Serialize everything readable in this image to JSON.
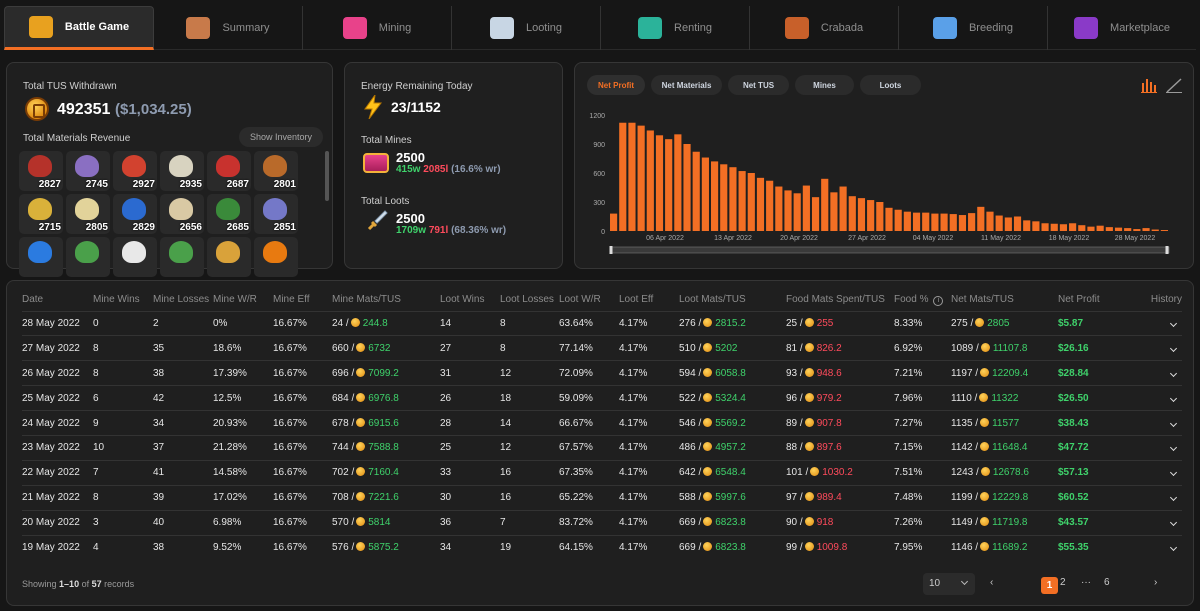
{
  "nav": {
    "tabs": [
      {
        "label": "Battle Game",
        "icon": "battle-logo-icon",
        "active": true
      },
      {
        "label": "Summary",
        "icon": "chest-icon"
      },
      {
        "label": "Mining",
        "icon": "treasure-chest-icon"
      },
      {
        "label": "Looting",
        "icon": "sword-icon"
      },
      {
        "label": "Renting",
        "icon": "rent-ticket-icon"
      },
      {
        "label": "Crabada",
        "icon": "crab-icon"
      },
      {
        "label": "Breeding",
        "icon": "egg-incubator-icon"
      },
      {
        "label": "Marketplace",
        "icon": "market-banner-icon"
      }
    ]
  },
  "withdrawn": {
    "title": "Total TUS Withdrawn",
    "amount": "492351",
    "usd": "($1,034.25)"
  },
  "materials": {
    "title": "Total Materials Revenue",
    "button": "Show Inventory",
    "items": [
      {
        "count": "2827",
        "color": "#b5322a"
      },
      {
        "count": "2745",
        "color": "#8a6fc2"
      },
      {
        "count": "2927",
        "color": "#d2422f"
      },
      {
        "count": "2935",
        "color": "#d8d3c0"
      },
      {
        "count": "2687",
        "color": "#c8322e"
      },
      {
        "count": "2801",
        "color": "#b96a2a"
      },
      {
        "count": "2715",
        "color": "#d9b13a"
      },
      {
        "count": "2805",
        "color": "#e2d39a"
      },
      {
        "count": "2829",
        "color": "#2b6ad0"
      },
      {
        "count": "2656",
        "color": "#d9c9a4"
      },
      {
        "count": "2685",
        "color": "#3a8a3a"
      },
      {
        "count": "2851",
        "color": "#7478c8"
      },
      {
        "count": "",
        "color": "#2b7be0"
      },
      {
        "count": "",
        "color": "#4aa04a"
      },
      {
        "count": "",
        "color": "#e8e8e8"
      },
      {
        "count": "",
        "color": "#4aa04a"
      },
      {
        "count": "",
        "color": "#d9a23a"
      },
      {
        "count": "",
        "color": "#e87a10"
      }
    ]
  },
  "energy": {
    "title": "Energy Remaining Today",
    "value": "23/1152"
  },
  "mines": {
    "title": "Total Mines",
    "total": "2500",
    "wins": "415w",
    "losses": "2085l",
    "rate": "(16.6% wr)"
  },
  "loots": {
    "title": "Total Loots",
    "total": "2500",
    "wins": "1709w",
    "losses": "791l",
    "rate": "(68.36% wr)"
  },
  "chart_tabs": [
    "Net Profit",
    "Net Materials",
    "Net TUS",
    "Mines",
    "Loots"
  ],
  "chart_data": {
    "type": "bar",
    "color": "#f36f24",
    "ylim": [
      0,
      1200
    ],
    "yticks": [
      "1200",
      "900",
      "600",
      "300",
      "0"
    ],
    "xticks": [
      "06 Apr 2022",
      "13 Apr 2022",
      "20 Apr 2022",
      "27 Apr 2022",
      "04 May 2022",
      "11 May 2022",
      "18 May 2022",
      "28 May 2022"
    ],
    "values": [
      180,
      1120,
      1120,
      1090,
      1040,
      990,
      950,
      1000,
      900,
      820,
      760,
      720,
      690,
      660,
      620,
      600,
      550,
      520,
      460,
      420,
      390,
      470,
      350,
      540,
      400,
      460,
      360,
      340,
      320,
      300,
      240,
      220,
      200,
      190,
      190,
      180,
      180,
      175,
      165,
      185,
      250,
      200,
      160,
      140,
      150,
      110,
      100,
      80,
      75,
      70,
      80,
      60,
      45,
      55,
      40,
      35,
      30,
      20,
      30,
      15,
      10
    ]
  },
  "table": {
    "headers": [
      "Date",
      "Mine Wins",
      "Mine Losses",
      "Mine W/R",
      "Mine Eff",
      "Mine Mats/TUS",
      "Loot Wins",
      "Loot Losses",
      "Loot W/R",
      "Loot Eff",
      "Loot Mats/TUS",
      "Food Mats Spent/TUS",
      "Food %",
      "Net Mats/TUS",
      "Net Profit",
      "History"
    ],
    "rows": [
      [
        "28 May 2022",
        "0",
        "2",
        "0%",
        "16.67%",
        "24 /",
        "244.8",
        "14",
        "8",
        "63.64%",
        "4.17%",
        "276 /",
        "2815.2",
        "25 /",
        "255",
        "8.33%",
        "275 /",
        "2805",
        "$5.87"
      ],
      [
        "27 May 2022",
        "8",
        "35",
        "18.6%",
        "16.67%",
        "660 /",
        "6732",
        "27",
        "8",
        "77.14%",
        "4.17%",
        "510 /",
        "5202",
        "81 /",
        "826.2",
        "6.92%",
        "1089 /",
        "11107.8",
        "$26.16"
      ],
      [
        "26 May 2022",
        "8",
        "38",
        "17.39%",
        "16.67%",
        "696 /",
        "7099.2",
        "31",
        "12",
        "72.09%",
        "4.17%",
        "594 /",
        "6058.8",
        "93 /",
        "948.6",
        "7.21%",
        "1197 /",
        "12209.4",
        "$28.84"
      ],
      [
        "25 May 2022",
        "6",
        "42",
        "12.5%",
        "16.67%",
        "684 /",
        "6976.8",
        "26",
        "18",
        "59.09%",
        "4.17%",
        "522 /",
        "5324.4",
        "96 /",
        "979.2",
        "7.96%",
        "1110 /",
        "11322",
        "$26.50"
      ],
      [
        "24 May 2022",
        "9",
        "34",
        "20.93%",
        "16.67%",
        "678 /",
        "6915.6",
        "28",
        "14",
        "66.67%",
        "4.17%",
        "546 /",
        "5569.2",
        "89 /",
        "907.8",
        "7.27%",
        "1135 /",
        "11577",
        "$38.43"
      ],
      [
        "23 May 2022",
        "10",
        "37",
        "21.28%",
        "16.67%",
        "744 /",
        "7588.8",
        "25",
        "12",
        "67.57%",
        "4.17%",
        "486 /",
        "4957.2",
        "88 /",
        "897.6",
        "7.15%",
        "1142 /",
        "11648.4",
        "$47.72"
      ],
      [
        "22 May 2022",
        "7",
        "41",
        "14.58%",
        "16.67%",
        "702 /",
        "7160.4",
        "33",
        "16",
        "67.35%",
        "4.17%",
        "642 /",
        "6548.4",
        "101 /",
        "1030.2",
        "7.51%",
        "1243 /",
        "12678.6",
        "$57.13"
      ],
      [
        "21 May 2022",
        "8",
        "39",
        "17.02%",
        "16.67%",
        "708 /",
        "7221.6",
        "30",
        "16",
        "65.22%",
        "4.17%",
        "588 /",
        "5997.6",
        "97 /",
        "989.4",
        "7.48%",
        "1199 /",
        "12229.8",
        "$60.52"
      ],
      [
        "20 May 2022",
        "3",
        "40",
        "6.98%",
        "16.67%",
        "570 /",
        "5814",
        "36",
        "7",
        "83.72%",
        "4.17%",
        "669 /",
        "6823.8",
        "90 /",
        "918",
        "7.26%",
        "1149 /",
        "11719.8",
        "$43.57"
      ],
      [
        "19 May 2022",
        "4",
        "38",
        "9.52%",
        "16.67%",
        "576 /",
        "5875.2",
        "34",
        "19",
        "64.15%",
        "4.17%",
        "669 /",
        "6823.8",
        "99 /",
        "1009.8",
        "7.95%",
        "1146 /",
        "11689.2",
        "$55.35"
      ]
    ]
  },
  "footer": {
    "showing": "Showing",
    "range": "1–10",
    "of": "of",
    "total": "57",
    "records": "records",
    "page_size": "10",
    "pages": [
      "1",
      "2",
      "···",
      "6"
    ]
  }
}
